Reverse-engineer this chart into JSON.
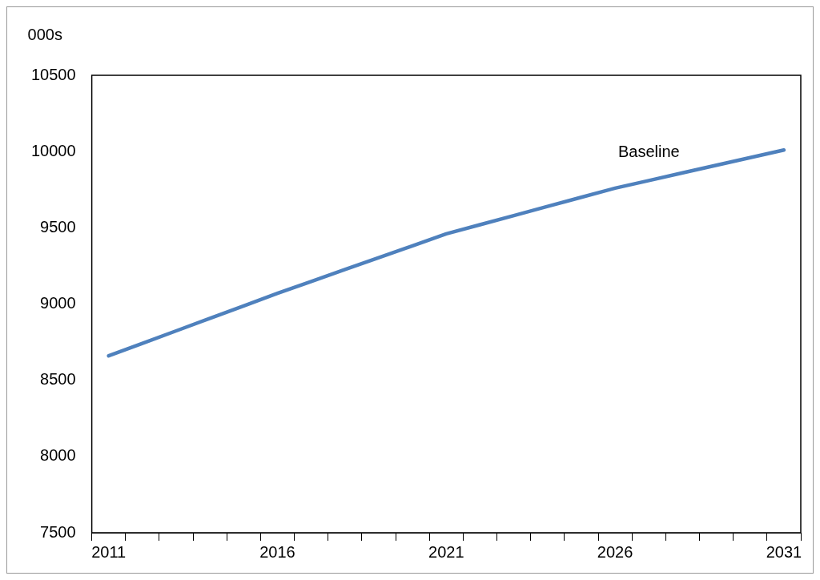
{
  "chart_data": {
    "type": "line",
    "ylabel": "000s",
    "categories": [
      "2011",
      null,
      null,
      null,
      null,
      "2016",
      null,
      null,
      null,
      null,
      "2021",
      null,
      null,
      null,
      null,
      "2026",
      null,
      null,
      null,
      null,
      "2031"
    ],
    "series": [
      {
        "name": "Baseline",
        "color": "#4f81bd",
        "values": [
          8660,
          8742,
          8824,
          8906,
          8988,
          9070,
          9148,
          9226,
          9304,
          9382,
          9460,
          9520,
          9580,
          9640,
          9700,
          9760,
          9810,
          9860,
          9910,
          9960,
          10010
        ]
      }
    ],
    "ylim": [
      7500,
      10500
    ],
    "yticks": [
      7500,
      8000,
      8500,
      9000,
      9500,
      10000,
      10500
    ],
    "grid": false,
    "legend": false,
    "marker": "none",
    "line_style": "solid"
  }
}
